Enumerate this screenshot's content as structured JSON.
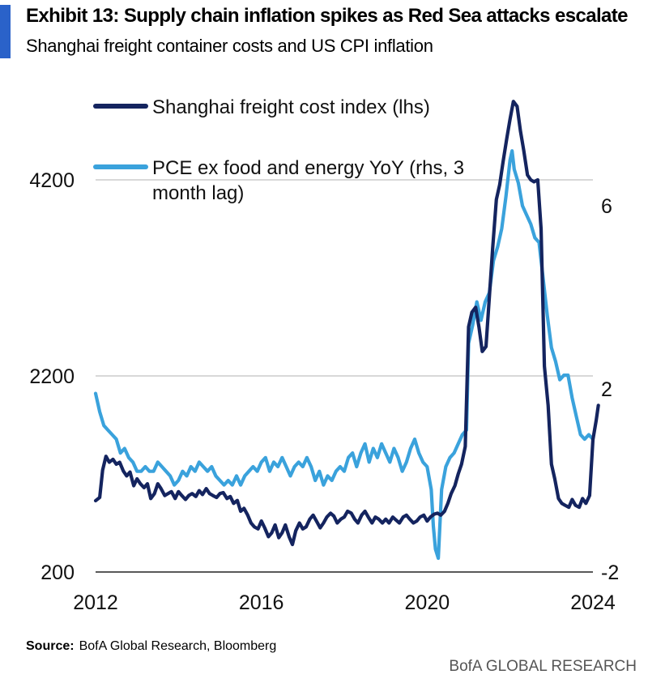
{
  "header": {
    "title": "Exhibit 13: Supply chain inflation spikes as Red Sea attacks escalate",
    "subtitle": "Shanghai freight container costs and US CPI inflation"
  },
  "footer": {
    "source_label": "Source:",
    "source_text": "BofA Global Research, Bloomberg",
    "brand": "BofA GLOBAL RESEARCH"
  },
  "colors": {
    "accent": "#2a62c9",
    "freight": "#14245f",
    "pce": "#3aa2dc",
    "grid": "#cccccc"
  },
  "chart_data": {
    "type": "line",
    "title": "Supply chain inflation spikes as Red Sea attacks escalate",
    "xlim": [
      2012,
      2024
    ],
    "x_ticks": [
      2012,
      2016,
      2020,
      2024
    ],
    "x_tick_labels": [
      "2012",
      "2016",
      "2020",
      "2024"
    ],
    "y_left": {
      "lim": [
        200,
        4200
      ],
      "ticks": [
        200,
        2200,
        4200
      ],
      "labels": [
        "200",
        "2200",
        "4200"
      ]
    },
    "y_right": {
      "lim": [
        -2,
        6.5
      ],
      "ticks": [
        -2,
        2,
        6
      ],
      "labels": [
        "-2",
        "2",
        "6"
      ]
    },
    "gridlines_left": [
      2200,
      4200
    ],
    "legend_position": "top-left",
    "series": [
      {
        "name": "Shanghai freight cost index (lhs)",
        "axis": "left",
        "color": "#14245f",
        "points": [
          [
            2012.0,
            927
          ],
          [
            2012.1,
            960
          ],
          [
            2012.17,
            1240
          ],
          [
            2012.25,
            1380
          ],
          [
            2012.33,
            1320
          ],
          [
            2012.42,
            1350
          ],
          [
            2012.5,
            1300
          ],
          [
            2012.58,
            1320
          ],
          [
            2012.67,
            1230
          ],
          [
            2012.75,
            1180
          ],
          [
            2012.83,
            1220
          ],
          [
            2012.92,
            1080
          ],
          [
            2013.0,
            1150
          ],
          [
            2013.08,
            1100
          ],
          [
            2013.17,
            1060
          ],
          [
            2013.25,
            1100
          ],
          [
            2013.33,
            950
          ],
          [
            2013.42,
            1000
          ],
          [
            2013.5,
            1100
          ],
          [
            2013.58,
            1050
          ],
          [
            2013.67,
            980
          ],
          [
            2013.75,
            1000
          ],
          [
            2013.83,
            1020
          ],
          [
            2013.92,
            950
          ],
          [
            2014.0,
            1020
          ],
          [
            2014.08,
            980
          ],
          [
            2014.17,
            940
          ],
          [
            2014.25,
            980
          ],
          [
            2014.33,
            1000
          ],
          [
            2014.42,
            970
          ],
          [
            2014.5,
            1030
          ],
          [
            2014.58,
            990
          ],
          [
            2014.67,
            1050
          ],
          [
            2014.75,
            1000
          ],
          [
            2014.83,
            980
          ],
          [
            2014.92,
            960
          ],
          [
            2015.0,
            1000
          ],
          [
            2015.08,
            1010
          ],
          [
            2015.17,
            950
          ],
          [
            2015.25,
            970
          ],
          [
            2015.33,
            900
          ],
          [
            2015.42,
            930
          ],
          [
            2015.5,
            820
          ],
          [
            2015.58,
            850
          ],
          [
            2015.67,
            780
          ],
          [
            2015.75,
            700
          ],
          [
            2015.83,
            660
          ],
          [
            2015.92,
            640
          ],
          [
            2016.0,
            720
          ],
          [
            2016.08,
            650
          ],
          [
            2016.17,
            560
          ],
          [
            2016.25,
            600
          ],
          [
            2016.33,
            680
          ],
          [
            2016.42,
            550
          ],
          [
            2016.5,
            600
          ],
          [
            2016.58,
            680
          ],
          [
            2016.67,
            560
          ],
          [
            2016.75,
            480
          ],
          [
            2016.83,
            620
          ],
          [
            2016.92,
            700
          ],
          [
            2017.0,
            640
          ],
          [
            2017.08,
            660
          ],
          [
            2017.17,
            740
          ],
          [
            2017.25,
            780
          ],
          [
            2017.33,
            720
          ],
          [
            2017.42,
            650
          ],
          [
            2017.5,
            700
          ],
          [
            2017.58,
            760
          ],
          [
            2017.67,
            800
          ],
          [
            2017.75,
            770
          ],
          [
            2017.83,
            700
          ],
          [
            2017.92,
            740
          ],
          [
            2018.0,
            760
          ],
          [
            2018.08,
            820
          ],
          [
            2018.17,
            800
          ],
          [
            2018.25,
            740
          ],
          [
            2018.33,
            700
          ],
          [
            2018.42,
            780
          ],
          [
            2018.5,
            820
          ],
          [
            2018.58,
            760
          ],
          [
            2018.67,
            700
          ],
          [
            2018.75,
            760
          ],
          [
            2018.83,
            740
          ],
          [
            2018.92,
            700
          ],
          [
            2019.0,
            740
          ],
          [
            2019.08,
            700
          ],
          [
            2019.17,
            760
          ],
          [
            2019.25,
            730
          ],
          [
            2019.33,
            700
          ],
          [
            2019.42,
            760
          ],
          [
            2019.5,
            780
          ],
          [
            2019.58,
            740
          ],
          [
            2019.67,
            700
          ],
          [
            2019.75,
            720
          ],
          [
            2019.83,
            760
          ],
          [
            2019.92,
            780
          ],
          [
            2020.0,
            720
          ],
          [
            2020.08,
            760
          ],
          [
            2020.17,
            790
          ],
          [
            2020.25,
            800
          ],
          [
            2020.33,
            780
          ],
          [
            2020.42,
            820
          ],
          [
            2020.5,
            900
          ],
          [
            2020.58,
            1000
          ],
          [
            2020.67,
            1080
          ],
          [
            2020.75,
            1200
          ],
          [
            2020.83,
            1300
          ],
          [
            2020.92,
            1480
          ],
          [
            2021.0,
            2700
          ],
          [
            2021.08,
            2850
          ],
          [
            2021.17,
            2900
          ],
          [
            2021.25,
            2700
          ],
          [
            2021.33,
            2450
          ],
          [
            2021.42,
            2500
          ],
          [
            2021.5,
            3000
          ],
          [
            2021.58,
            3500
          ],
          [
            2021.67,
            4000
          ],
          [
            2021.75,
            4150
          ],
          [
            2021.83,
            4380
          ],
          [
            2021.92,
            4620
          ],
          [
            2022.0,
            4820
          ],
          [
            2022.08,
            5000
          ],
          [
            2022.17,
            4950
          ],
          [
            2022.25,
            4700
          ],
          [
            2022.33,
            4500
          ],
          [
            2022.42,
            4250
          ],
          [
            2022.5,
            4200
          ],
          [
            2022.58,
            4180
          ],
          [
            2022.67,
            4200
          ],
          [
            2022.75,
            3700
          ],
          [
            2022.83,
            2300
          ],
          [
            2022.92,
            1900
          ],
          [
            2023.0,
            1300
          ],
          [
            2023.08,
            1150
          ],
          [
            2023.17,
            950
          ],
          [
            2023.25,
            900
          ],
          [
            2023.33,
            880
          ],
          [
            2023.42,
            860
          ],
          [
            2023.5,
            940
          ],
          [
            2023.58,
            880
          ],
          [
            2023.67,
            860
          ],
          [
            2023.75,
            950
          ],
          [
            2023.83,
            900
          ],
          [
            2023.92,
            980
          ],
          [
            2024.0,
            1550
          ],
          [
            2024.08,
            1750
          ],
          [
            2024.13,
            1900
          ]
        ]
      },
      {
        "name": "PCE ex food and energy YoY (rhs, 3 month lag)",
        "axis": "right",
        "color": "#3aa2dc",
        "points": [
          [
            2012.0,
            1.9
          ],
          [
            2012.1,
            1.5
          ],
          [
            2012.2,
            1.2
          ],
          [
            2012.3,
            1.1
          ],
          [
            2012.4,
            1.0
          ],
          [
            2012.5,
            0.9
          ],
          [
            2012.6,
            0.6
          ],
          [
            2012.7,
            0.7
          ],
          [
            2012.8,
            0.5
          ],
          [
            2012.9,
            0.4
          ],
          [
            2013.0,
            0.2
          ],
          [
            2013.1,
            0.2
          ],
          [
            2013.2,
            0.3
          ],
          [
            2013.3,
            0.2
          ],
          [
            2013.4,
            0.2
          ],
          [
            2013.5,
            0.4
          ],
          [
            2013.6,
            0.3
          ],
          [
            2013.7,
            0.2
          ],
          [
            2013.8,
            0.1
          ],
          [
            2013.9,
            -0.1
          ],
          [
            2014.0,
            0.0
          ],
          [
            2014.1,
            0.2
          ],
          [
            2014.2,
            0.1
          ],
          [
            2014.3,
            0.3
          ],
          [
            2014.4,
            0.2
          ],
          [
            2014.5,
            0.4
          ],
          [
            2014.6,
            0.3
          ],
          [
            2014.7,
            0.2
          ],
          [
            2014.8,
            0.3
          ],
          [
            2014.9,
            0.1
          ],
          [
            2015.0,
            0.0
          ],
          [
            2015.1,
            -0.1
          ],
          [
            2015.2,
            0.0
          ],
          [
            2015.3,
            -0.1
          ],
          [
            2015.4,
            0.1
          ],
          [
            2015.5,
            -0.1
          ],
          [
            2015.6,
            0.1
          ],
          [
            2015.7,
            0.2
          ],
          [
            2015.8,
            0.3
          ],
          [
            2015.9,
            0.2
          ],
          [
            2016.0,
            0.4
          ],
          [
            2016.1,
            0.5
          ],
          [
            2016.2,
            0.2
          ],
          [
            2016.3,
            0.4
          ],
          [
            2016.4,
            0.3
          ],
          [
            2016.5,
            0.5
          ],
          [
            2016.6,
            0.3
          ],
          [
            2016.7,
            0.1
          ],
          [
            2016.8,
            0.3
          ],
          [
            2016.9,
            0.4
          ],
          [
            2017.0,
            0.3
          ],
          [
            2017.1,
            0.5
          ],
          [
            2017.2,
            0.3
          ],
          [
            2017.3,
            0.0
          ],
          [
            2017.4,
            0.2
          ],
          [
            2017.5,
            -0.1
          ],
          [
            2017.6,
            0.1
          ],
          [
            2017.7,
            0.0
          ],
          [
            2017.8,
            0.2
          ],
          [
            2017.9,
            0.3
          ],
          [
            2018.0,
            0.2
          ],
          [
            2018.1,
            0.5
          ],
          [
            2018.2,
            0.6
          ],
          [
            2018.3,
            0.3
          ],
          [
            2018.4,
            0.6
          ],
          [
            2018.5,
            0.8
          ],
          [
            2018.6,
            0.4
          ],
          [
            2018.7,
            0.7
          ],
          [
            2018.8,
            0.5
          ],
          [
            2018.9,
            0.8
          ],
          [
            2019.0,
            0.6
          ],
          [
            2019.1,
            0.4
          ],
          [
            2019.2,
            0.7
          ],
          [
            2019.3,
            0.5
          ],
          [
            2019.4,
            0.2
          ],
          [
            2019.5,
            0.4
          ],
          [
            2019.6,
            0.7
          ],
          [
            2019.7,
            0.9
          ],
          [
            2019.8,
            0.6
          ],
          [
            2019.9,
            0.4
          ],
          [
            2020.0,
            0.3
          ],
          [
            2020.1,
            -0.2
          ],
          [
            2020.15,
            -1.0
          ],
          [
            2020.2,
            -1.5
          ],
          [
            2020.27,
            -1.7
          ],
          [
            2020.35,
            -0.2
          ],
          [
            2020.45,
            0.3
          ],
          [
            2020.55,
            0.5
          ],
          [
            2020.65,
            0.6
          ],
          [
            2020.75,
            0.8
          ],
          [
            2020.85,
            1.0
          ],
          [
            2020.95,
            1.1
          ],
          [
            2021.0,
            3.0
          ],
          [
            2021.1,
            3.4
          ],
          [
            2021.2,
            3.9
          ],
          [
            2021.3,
            3.5
          ],
          [
            2021.4,
            3.9
          ],
          [
            2021.5,
            4.1
          ],
          [
            2021.6,
            4.8
          ],
          [
            2021.7,
            5.1
          ],
          [
            2021.8,
            5.5
          ],
          [
            2021.9,
            6.2
          ],
          [
            2022.0,
            7.0
          ],
          [
            2022.05,
            7.2
          ],
          [
            2022.1,
            6.8
          ],
          [
            2022.2,
            6.5
          ],
          [
            2022.3,
            6.0
          ],
          [
            2022.4,
            5.8
          ],
          [
            2022.5,
            5.6
          ],
          [
            2022.6,
            5.3
          ],
          [
            2022.7,
            5.2
          ],
          [
            2022.8,
            4.4
          ],
          [
            2022.9,
            3.6
          ],
          [
            2023.0,
            2.9
          ],
          [
            2023.1,
            2.6
          ],
          [
            2023.2,
            2.2
          ],
          [
            2023.3,
            2.3
          ],
          [
            2023.4,
            2.3
          ],
          [
            2023.5,
            1.8
          ],
          [
            2023.6,
            1.4
          ],
          [
            2023.7,
            1.0
          ],
          [
            2023.8,
            0.9
          ],
          [
            2023.9,
            1.0
          ],
          [
            2024.0,
            0.9
          ]
        ]
      }
    ]
  }
}
